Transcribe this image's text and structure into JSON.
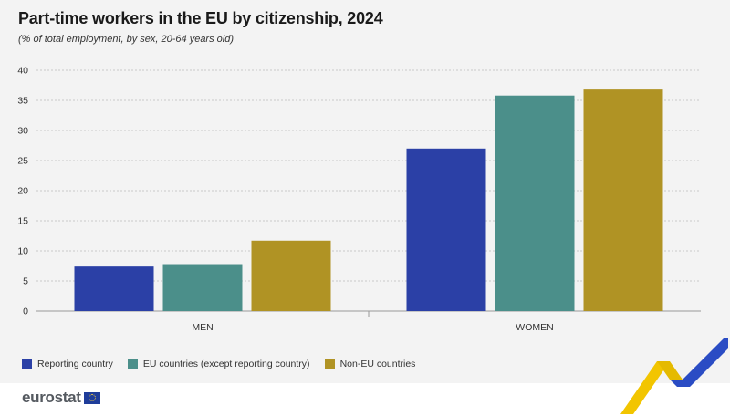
{
  "title": "Part-time workers in the EU by citizenship, 2024",
  "subtitle": "(% of total employment, by sex, 20-64 years old)",
  "logo_text": "eurostat",
  "colors": {
    "reporting": "#2b40a6",
    "eu": "#4b8f8a",
    "non_eu": "#b09324",
    "grid": "#c8c8c8",
    "axis_text": "#333333"
  },
  "chart_data": {
    "type": "bar",
    "categories": [
      "MEN",
      "WOMEN"
    ],
    "series": [
      {
        "name": "Reporting country",
        "values": [
          7.4,
          27.0
        ]
      },
      {
        "name": "EU countries (except reporting country)",
        "values": [
          7.8,
          35.8
        ]
      },
      {
        "name": "Non-EU countries",
        "values": [
          11.7,
          36.8
        ]
      }
    ],
    "ylim": [
      0,
      40
    ],
    "yticks": [
      0,
      5,
      10,
      15,
      20,
      25,
      30,
      35,
      40
    ],
    "grid": true,
    "legend_position": "bottom-left",
    "xlabel": "",
    "ylabel": ""
  }
}
